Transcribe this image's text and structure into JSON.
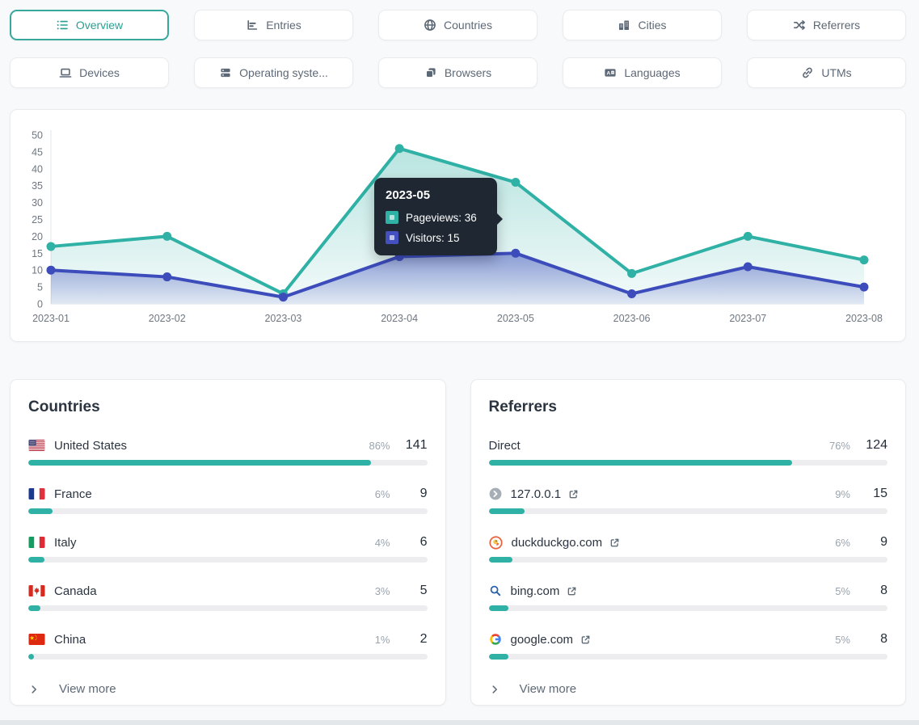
{
  "colors": {
    "accent_teal": "#2fb1a5",
    "accent_indigo": "#3c4cbb",
    "tooltip_bg": "#1e2732",
    "page_bg": "#f7f9fa"
  },
  "tabs": {
    "items": [
      {
        "key": "overview",
        "label": "Overview",
        "icon": "list-icon",
        "selected": true
      },
      {
        "key": "entries",
        "label": "Entries",
        "icon": "bar-chart-icon",
        "selected": false
      },
      {
        "key": "countries",
        "label": "Countries",
        "icon": "globe-icon",
        "selected": false
      },
      {
        "key": "cities",
        "label": "Cities",
        "icon": "buildings-icon",
        "selected": false
      },
      {
        "key": "referrers",
        "label": "Referrers",
        "icon": "shuffle-icon",
        "selected": false
      },
      {
        "key": "devices",
        "label": "Devices",
        "icon": "laptop-icon",
        "selected": false
      },
      {
        "key": "operating-systems",
        "label": "Operating syste...",
        "icon": "server-stack-icon",
        "selected": false
      },
      {
        "key": "browsers",
        "label": "Browsers",
        "icon": "windows-icon",
        "selected": false
      },
      {
        "key": "languages",
        "label": "Languages",
        "icon": "translate-icon",
        "selected": false
      },
      {
        "key": "utms",
        "label": "UTMs",
        "icon": "link-icon",
        "selected": false
      }
    ]
  },
  "chart_data": {
    "type": "line",
    "x": [
      "2023-01",
      "2023-02",
      "2023-03",
      "2023-04",
      "2023-05",
      "2023-06",
      "2023-07",
      "2023-08"
    ],
    "series": [
      {
        "name": "Pageviews",
        "color": "#2fb1a5",
        "values": [
          17,
          20,
          3,
          46,
          36,
          9,
          20,
          13
        ]
      },
      {
        "name": "Visitors",
        "color": "#3c4cbb",
        "values": [
          10,
          8,
          2,
          14,
          15,
          3,
          11,
          5
        ]
      }
    ],
    "ylim": [
      0,
      50
    ],
    "ytick_step": 5,
    "grid": false,
    "area_fill": true,
    "legend_position": "none"
  },
  "tooltip": {
    "title": "2023-05",
    "rows": [
      {
        "label": "Pageviews: 36",
        "color": "#2fb1a5"
      },
      {
        "label": "Visitors: 15",
        "color": "#4450c0"
      }
    ]
  },
  "countries_card": {
    "title": "Countries",
    "view_more": "View more",
    "rows": [
      {
        "name": "United States",
        "flag": "us",
        "percent": "86%",
        "count": "141",
        "bar": 86
      },
      {
        "name": "France",
        "flag": "fr",
        "percent": "6%",
        "count": "9",
        "bar": 6
      },
      {
        "name": "Italy",
        "flag": "it",
        "percent": "4%",
        "count": "6",
        "bar": 4
      },
      {
        "name": "Canada",
        "flag": "ca",
        "percent": "3%",
        "count": "5",
        "bar": 3
      },
      {
        "name": "China",
        "flag": "cn",
        "percent": "1%",
        "count": "2",
        "bar": 1
      }
    ]
  },
  "referrers_card": {
    "title": "Referrers",
    "view_more": "View more",
    "rows": [
      {
        "name": "Direct",
        "favicon": "none",
        "external": false,
        "percent": "76%",
        "count": "124",
        "bar": 76
      },
      {
        "name": "127.0.0.1",
        "favicon": "default-favicon",
        "external": true,
        "percent": "9%",
        "count": "15",
        "bar": 9
      },
      {
        "name": "duckduckgo.com",
        "favicon": "duckduckgo-favicon",
        "external": true,
        "percent": "6%",
        "count": "9",
        "bar": 6
      },
      {
        "name": "bing.com",
        "favicon": "bing-favicon",
        "external": true,
        "percent": "5%",
        "count": "8",
        "bar": 5
      },
      {
        "name": "google.com",
        "favicon": "google-favicon",
        "external": true,
        "percent": "5%",
        "count": "8",
        "bar": 5
      }
    ]
  }
}
